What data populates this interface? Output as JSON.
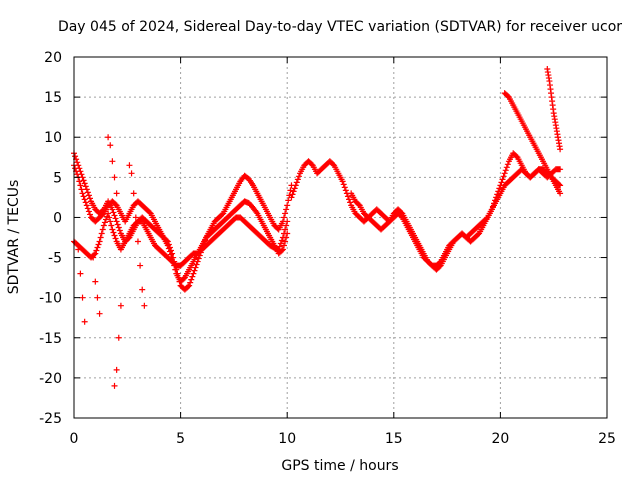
{
  "chart_data": {
    "type": "scatter",
    "title": "Day 045 of 2024, Sidereal Day-to-day VTEC variation (SDTVAR) for receiver ucor",
    "xlabel": "GPS time / hours",
    "ylabel": "SDTVAR / TECUs",
    "xlim": [
      0,
      25
    ],
    "ylim": [
      -25,
      20
    ],
    "x_ticks": [
      "0",
      "5",
      "10",
      "15",
      "20",
      "25"
    ],
    "y_ticks": [
      "20",
      "15",
      "10",
      "5",
      "0",
      "-5",
      "-10",
      "-15",
      "-20",
      "-25"
    ],
    "x_tick_values": [
      0,
      5,
      10,
      15,
      20,
      25
    ],
    "y_tick_values": [
      20,
      15,
      10,
      5,
      0,
      -5,
      -10,
      -15,
      -20,
      -25
    ],
    "grid": true,
    "marker": "+",
    "series": [
      {
        "name": "trace-a",
        "color": "#ff0000",
        "x": [
          0.0,
          0.2,
          0.4,
          0.6,
          0.8,
          1.0,
          1.2,
          1.4,
          1.6,
          1.8,
          2.0,
          2.2,
          2.4,
          2.6,
          2.8,
          3.0,
          3.2,
          3.4,
          3.6,
          3.8,
          4.0,
          4.2,
          4.4,
          4.6,
          4.8,
          5.0,
          5.2,
          5.4,
          5.6,
          5.8,
          6.0,
          6.2,
          6.4,
          6.6,
          6.8,
          7.0,
          7.2,
          7.4,
          7.6,
          7.8,
          8.0,
          8.2,
          8.4,
          8.6,
          8.8,
          9.0,
          9.2,
          9.4,
          9.6,
          9.8,
          10.0,
          10.2
        ],
        "y": [
          8.0,
          6.5,
          5.0,
          3.5,
          2.0,
          1.0,
          0.5,
          1.0,
          2.0,
          1.0,
          -0.5,
          -2.0,
          -3.0,
          -2.5,
          -1.5,
          -0.5,
          0.0,
          -0.5,
          -1.0,
          -1.5,
          -2.0,
          -2.5,
          -3.0,
          -4.5,
          -6.5,
          -8.5,
          -9.0,
          -8.5,
          -7.0,
          -5.5,
          -4.0,
          -2.5,
          -1.5,
          -0.5,
          0.0,
          0.5,
          1.5,
          2.5,
          3.5,
          4.5,
          5.2,
          4.8,
          4.0,
          3.0,
          2.0,
          1.0,
          0.0,
          -1.0,
          -1.5,
          -0.5,
          1.5,
          4.0
        ]
      },
      {
        "name": "trace-b",
        "color": "#ff0000",
        "x": [
          0.0,
          0.2,
          0.4,
          0.6,
          0.8,
          1.0,
          1.2,
          1.4,
          1.6,
          1.8,
          2.0,
          2.2,
          2.4,
          2.6,
          2.8,
          3.0,
          3.2,
          3.4,
          3.6,
          3.8,
          4.0,
          4.2,
          4.4,
          4.6,
          4.8,
          5.0,
          5.2,
          5.4,
          5.6,
          5.8,
          6.0,
          6.2,
          6.4,
          6.6,
          6.8,
          7.0,
          7.2,
          7.4,
          7.6,
          7.8,
          8.0,
          8.2,
          8.4,
          8.6,
          8.8,
          9.0,
          9.2,
          9.4,
          9.6,
          9.8,
          10.0
        ],
        "y": [
          6.5,
          5.0,
          3.0,
          1.5,
          0.0,
          -0.5,
          0.0,
          0.5,
          1.5,
          2.0,
          1.5,
          0.5,
          -0.5,
          0.5,
          1.5,
          2.0,
          1.5,
          1.0,
          0.5,
          -0.5,
          -1.5,
          -2.5,
          -3.5,
          -5.0,
          -7.0,
          -8.0,
          -7.5,
          -6.5,
          -5.5,
          -4.5,
          -3.5,
          -2.5,
          -2.0,
          -1.5,
          -1.0,
          -0.5,
          0.0,
          0.5,
          1.0,
          1.5,
          2.0,
          1.8,
          1.2,
          0.5,
          -0.5,
          -1.5,
          -2.5,
          -3.5,
          -4.5,
          -4.0,
          -2.0
        ]
      },
      {
        "name": "trace-c",
        "color": "#ff0000",
        "x": [
          0.0,
          0.2,
          0.4,
          0.6,
          0.8,
          1.0,
          1.2,
          1.4,
          1.6,
          1.8,
          2.0,
          2.2,
          2.4,
          2.6,
          2.8,
          3.0,
          3.2,
          3.4,
          3.6,
          3.8,
          4.0,
          4.2,
          4.4,
          4.6,
          4.8,
          5.0,
          5.2,
          5.4,
          5.6,
          5.8,
          6.0,
          6.2,
          6.4,
          6.6,
          6.8,
          7.0,
          7.2,
          7.4,
          7.6,
          7.8,
          8.0,
          8.2,
          8.4,
          8.6,
          8.8,
          9.0,
          9.2,
          9.4,
          9.6,
          9.8,
          10.0
        ],
        "y": [
          -3.0,
          -3.5,
          -4.0,
          -4.5,
          -5.0,
          -4.5,
          -3.0,
          -1.0,
          0.5,
          -1.5,
          -3.0,
          -4.0,
          -3.0,
          -2.0,
          -1.0,
          -0.5,
          -0.5,
          -1.5,
          -2.5,
          -3.5,
          -4.0,
          -4.5,
          -5.0,
          -5.5,
          -6.0,
          -6.0,
          -5.5,
          -5.0,
          -4.5,
          -4.5,
          -4.0,
          -3.5,
          -3.0,
          -2.5,
          -2.0,
          -1.5,
          -1.0,
          -0.5,
          0.0,
          0.0,
          -0.5,
          -1.0,
          -1.5,
          -2.0,
          -2.5,
          -3.0,
          -3.5,
          -3.8,
          -4.0,
          -2.5,
          -0.5
        ]
      },
      {
        "name": "trace-d",
        "color": "#ff0000",
        "x": [
          10.2,
          10.4,
          10.6,
          10.8,
          11.0,
          11.2,
          11.4,
          11.6,
          11.8,
          12.0,
          12.2,
          12.4,
          12.6,
          12.8,
          13.0,
          13.2,
          13.4,
          13.6,
          13.8,
          14.0,
          14.2,
          14.4,
          14.6,
          14.8,
          15.0,
          15.2,
          15.4,
          15.6,
          15.8,
          16.0,
          16.2,
          16.4,
          16.6,
          16.8,
          17.0,
          17.2,
          17.4,
          17.6,
          17.8,
          18.0,
          18.2,
          18.4,
          18.6,
          18.8,
          19.0,
          19.2,
          19.4,
          19.6,
          19.8,
          20.0,
          20.2,
          20.4,
          20.6,
          20.8,
          21.0,
          21.2,
          21.4,
          21.6,
          21.8,
          22.0,
          22.2,
          22.4,
          22.6,
          22.8
        ],
        "y": [
          2.5,
          4.0,
          5.5,
          6.5,
          7.0,
          6.5,
          5.5,
          6.0,
          6.5,
          7.0,
          6.5,
          5.5,
          4.5,
          3.0,
          1.5,
          0.5,
          0.0,
          -0.5,
          0.0,
          0.5,
          1.0,
          0.5,
          0.0,
          -0.5,
          0.5,
          1.0,
          0.5,
          -0.5,
          -1.5,
          -2.5,
          -3.5,
          -4.5,
          -5.5,
          -6.0,
          -6.5,
          -6.0,
          -5.0,
          -4.0,
          -3.0,
          -2.5,
          -2.0,
          -2.5,
          -2.0,
          -1.5,
          -1.0,
          -0.5,
          0.0,
          1.0,
          2.5,
          4.0,
          5.5,
          7.0,
          8.0,
          7.5,
          6.5,
          5.5,
          5.0,
          5.5,
          6.0,
          5.5,
          5.0,
          5.5,
          6.0,
          6.0
        ]
      },
      {
        "name": "trace-e",
        "color": "#ff0000",
        "x": [
          13.0,
          13.2,
          13.4,
          13.6,
          13.8,
          14.0,
          14.2,
          14.4,
          14.6,
          14.8,
          15.0,
          15.2,
          15.4,
          15.6,
          15.8,
          16.0,
          16.2,
          16.4,
          16.6,
          16.8,
          17.0,
          17.2,
          17.4,
          17.6,
          17.8,
          18.0,
          18.2,
          18.4,
          18.6,
          18.8,
          19.0,
          19.2,
          19.4,
          19.6,
          19.8,
          20.0,
          20.2,
          20.4,
          20.6,
          20.8,
          21.0,
          21.2,
          21.4,
          21.6,
          21.8,
          22.0,
          22.2,
          22.4,
          22.6,
          22.8
        ],
        "y": [
          3.0,
          2.0,
          1.5,
          0.5,
          0.0,
          -0.5,
          -1.0,
          -1.5,
          -1.0,
          -0.5,
          0.0,
          0.5,
          0.0,
          -1.0,
          -2.0,
          -3.0,
          -4.0,
          -5.0,
          -5.5,
          -6.0,
          -6.0,
          -5.5,
          -4.5,
          -3.5,
          -3.0,
          -2.5,
          -2.0,
          -2.5,
          -3.0,
          -2.5,
          -2.0,
          -1.0,
          0.0,
          1.0,
          2.0,
          3.0,
          4.0,
          4.5,
          5.0,
          5.5,
          6.0,
          5.5,
          5.0,
          5.5,
          6.0,
          6.0,
          5.5,
          5.0,
          4.5,
          4.0
        ]
      },
      {
        "name": "trace-f",
        "color": "#ff0000",
        "x": [
          20.2,
          20.4,
          20.6,
          20.8,
          21.0,
          21.2,
          21.4,
          21.6,
          21.8,
          22.0,
          22.2,
          22.4,
          22.6,
          22.8
        ],
        "y": [
          15.5,
          15.0,
          14.0,
          13.0,
          12.0,
          11.0,
          10.0,
          9.0,
          8.0,
          7.0,
          6.0,
          5.0,
          4.0,
          3.0
        ]
      },
      {
        "name": "trace-g",
        "color": "#ff0000",
        "x": [
          22.2,
          22.3,
          22.4,
          22.5,
          22.6,
          22.7,
          22.8
        ],
        "y": [
          18.5,
          17.0,
          15.0,
          13.0,
          11.5,
          10.0,
          8.5
        ]
      },
      {
        "name": "spikes",
        "color": "#ff0000",
        "x": [
          0.2,
          0.3,
          0.4,
          0.5,
          0.9,
          1.0,
          1.1,
          1.2,
          1.6,
          1.7,
          1.8,
          1.9,
          2.0,
          2.6,
          2.7,
          2.8,
          2.9,
          3.0,
          3.1,
          3.2,
          3.3,
          1.9,
          2.0,
          2.1,
          2.2
        ],
        "y": [
          -4.0,
          -7.0,
          -10.0,
          -13.0,
          -5.0,
          -8.0,
          -10.0,
          -12.0,
          10.0,
          9.0,
          7.0,
          5.0,
          3.0,
          6.5,
          5.5,
          3.0,
          0.0,
          -3.0,
          -6.0,
          -9.0,
          -11.0,
          -21.0,
          -19.0,
          -15.0,
          -11.0
        ]
      }
    ]
  }
}
